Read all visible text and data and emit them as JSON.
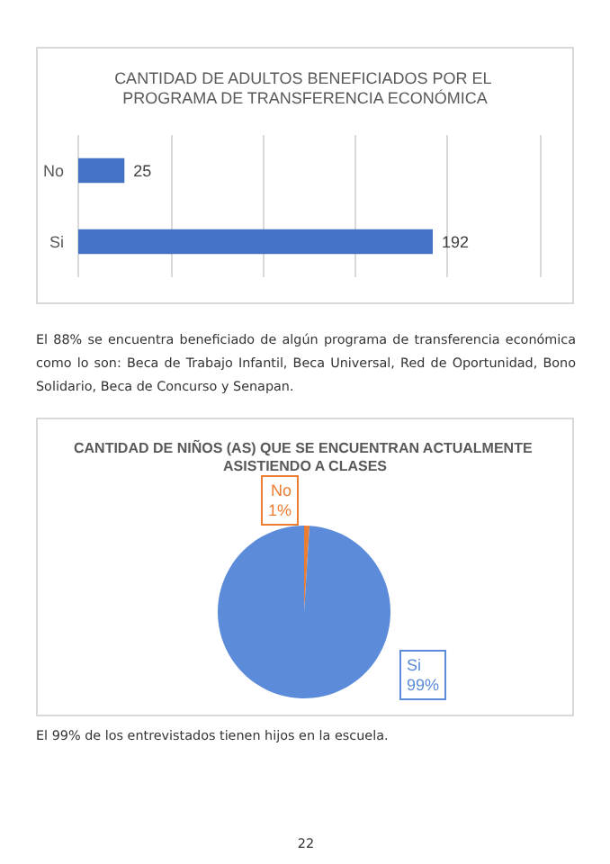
{
  "chart_data": [
    {
      "type": "bar",
      "orientation": "horizontal",
      "title": "CANTIDAD DE ADULTOS BENEFICIADOS POR EL PROGRAMA DE TRANSFERENCIA ECONÓMICA",
      "categories": [
        "No",
        "Si"
      ],
      "values": [
        25,
        192
      ],
      "color": "#4472c4",
      "xlim": [
        0,
        250
      ],
      "xticks": [
        {
          "value": 0,
          "label": null
        },
        {
          "value": 50,
          "label": null
        },
        {
          "value": 100,
          "label": null
        },
        {
          "value": 150,
          "label": null
        },
        {
          "value": 200,
          "label": null
        },
        {
          "value": 250,
          "label": null
        }
      ],
      "grid": "x",
      "tick_labels": "y",
      "data_labels": true,
      "annotations": [
        "El 88% se encuentra beneficiado de algún programa de transferencia económica como lo son: Beca de Trabajo Infantil, Beca Universal, Red de Oportunidad, Bono Solidario, Beca de Concurso y Senapan."
      ]
    },
    {
      "type": "pie",
      "title": "CANTIDAD DE NIÑOS (AS) QUE SE ENCUENTRAN ACTUALMENTE ASISTIENDO A CLASES",
      "categories": [
        "No",
        "Si"
      ],
      "values": [
        1,
        99
      ],
      "colors": [
        "#ed7d31",
        "#5b8bd9"
      ],
      "value_labels": [
        "1%",
        "99%"
      ],
      "annotations": [
        "El 99% de los entrevistados tienen hijos en la escuela.",
        "22"
      ]
    }
  ]
}
